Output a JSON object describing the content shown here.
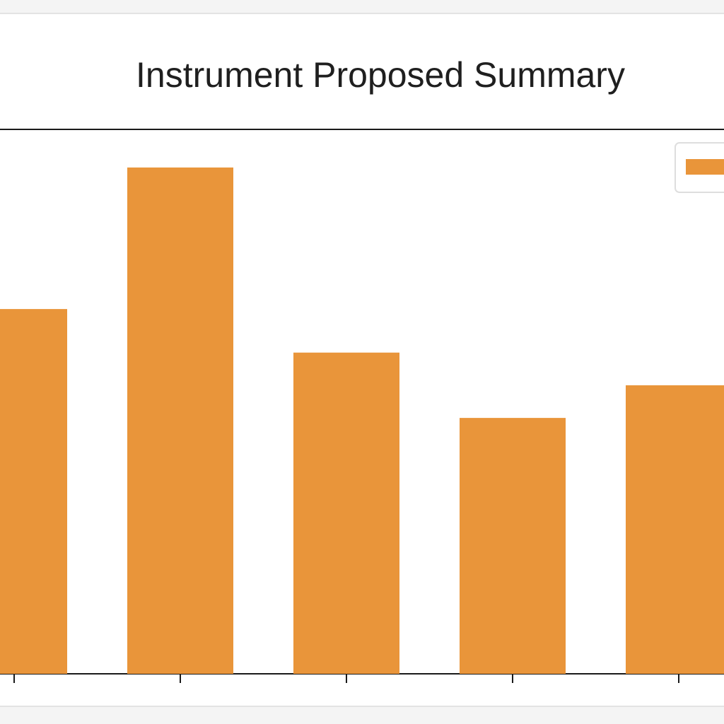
{
  "chart_data": {
    "type": "bar",
    "title": "Instrument Proposed Summary",
    "categories": [
      "",
      "",
      "",
      "",
      ""
    ],
    "values": [
      67,
      93,
      59,
      47,
      53
    ],
    "ylim": [
      0,
      100
    ],
    "bar_color": "#E9953A",
    "legend": {
      "placement": "top-right",
      "entries": [
        ""
      ]
    },
    "grid": false
  }
}
